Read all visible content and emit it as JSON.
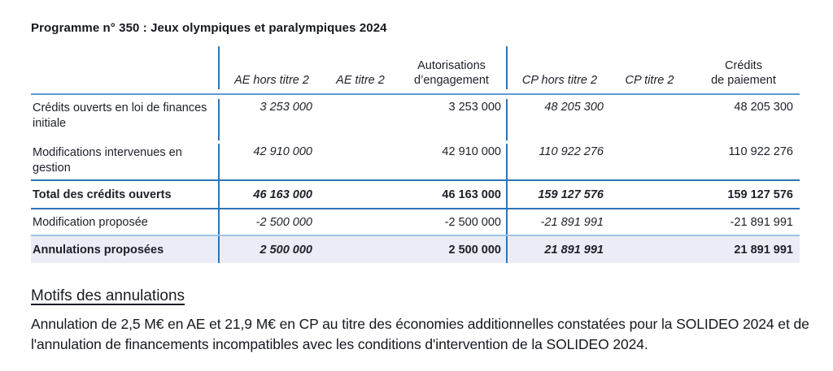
{
  "title": "Programme n° 350 : Jeux olympiques et paralympiques 2024",
  "table": {
    "columns": [
      "AE hors titre 2",
      "AE titre 2",
      "Autorisations\nd’engagement",
      "CP hors titre 2",
      "CP titre 2",
      "Crédits\nde paiement"
    ],
    "rows": [
      {
        "label": "Crédits ouverts en loi de finances initiale",
        "values": [
          "3 253 000",
          "",
          "3 253 000",
          "48 205 300",
          "",
          "48 205 300"
        ]
      },
      {
        "label": "Modifications intervenues en gestion",
        "values": [
          "42 910 000",
          "",
          "42 910 000",
          "110 922 276",
          "",
          "110 922 276"
        ]
      },
      {
        "label": "Total des crédits ouverts",
        "values": [
          "46 163 000",
          "",
          "46 163 000",
          "159 127 576",
          "",
          "159 127 576"
        ]
      },
      {
        "label": "Modification proposée",
        "values": [
          "-2 500 000",
          "",
          "-2 500 000",
          "-21 891 991",
          "",
          "-21 891 991"
        ]
      },
      {
        "label": "Annulations proposées",
        "values": [
          "2 500 000",
          "",
          "2 500 000",
          "21 891 991",
          "",
          "21 891 991"
        ]
      }
    ]
  },
  "footer": {
    "heading": "Motifs des annulations",
    "paragraph": "Annulation de 2,5 M€ en AE et 21,9 M€ en CP au titre des économies additionnelles constatées pour la SOLIDEO 2024 et de l'annulation de financements incompatibles avec les conditions d'intervention de la SOLIDEO 2024."
  },
  "colors": {
    "rule_medium_blue": "#2E75B6",
    "rule_header_blue": "#5B9BD5",
    "rule_light_blue": "#9DC3E6",
    "highlight_row_bg": "#EAEDF5",
    "text": "#1c2029"
  }
}
